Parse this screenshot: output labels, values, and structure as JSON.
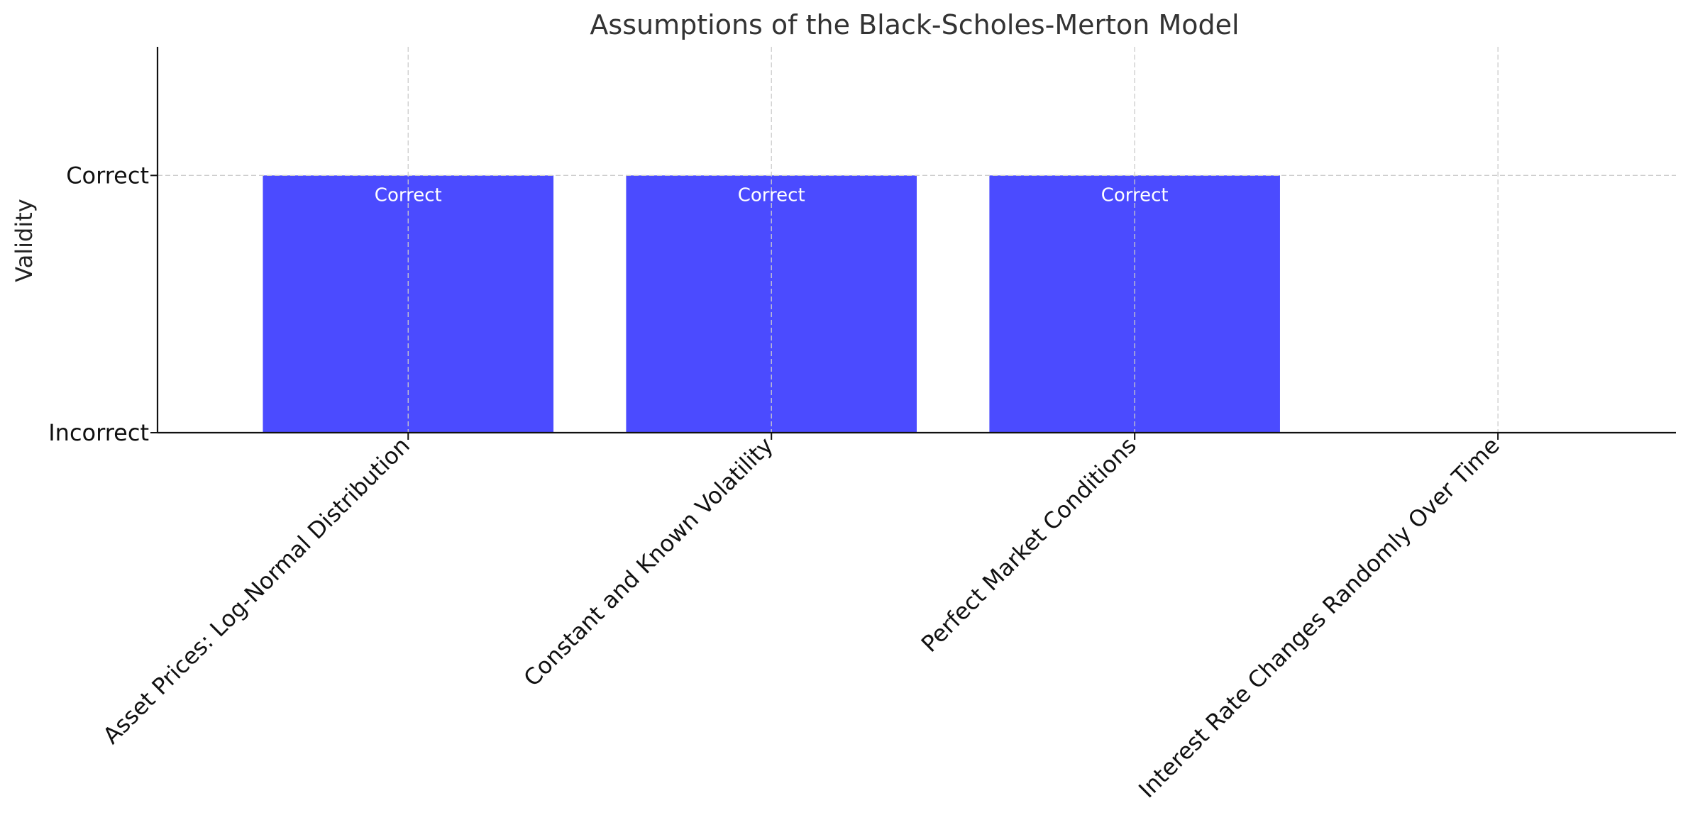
{
  "chart_data": {
    "type": "bar",
    "title": "Assumptions of the Black-Scholes-Merton Model",
    "xlabel": "",
    "ylabel": "Validity",
    "categories": [
      "Asset Prices: Log-Normal Distribution",
      "Constant and Known Volatility",
      "Perfect Market Conditions",
      "Interest Rate Changes Randomly Over Time"
    ],
    "values": [
      1,
      1,
      1,
      0
    ],
    "bar_labels": [
      "Correct",
      "Correct",
      "Correct",
      ""
    ],
    "ylim": [
      0,
      1.5
    ],
    "yticks": [
      {
        "value": 0,
        "label": "Incorrect"
      },
      {
        "value": 1,
        "label": "Correct"
      }
    ],
    "grid": true,
    "bar_color": "#4b4bff",
    "bar_alpha": 1.0
  }
}
